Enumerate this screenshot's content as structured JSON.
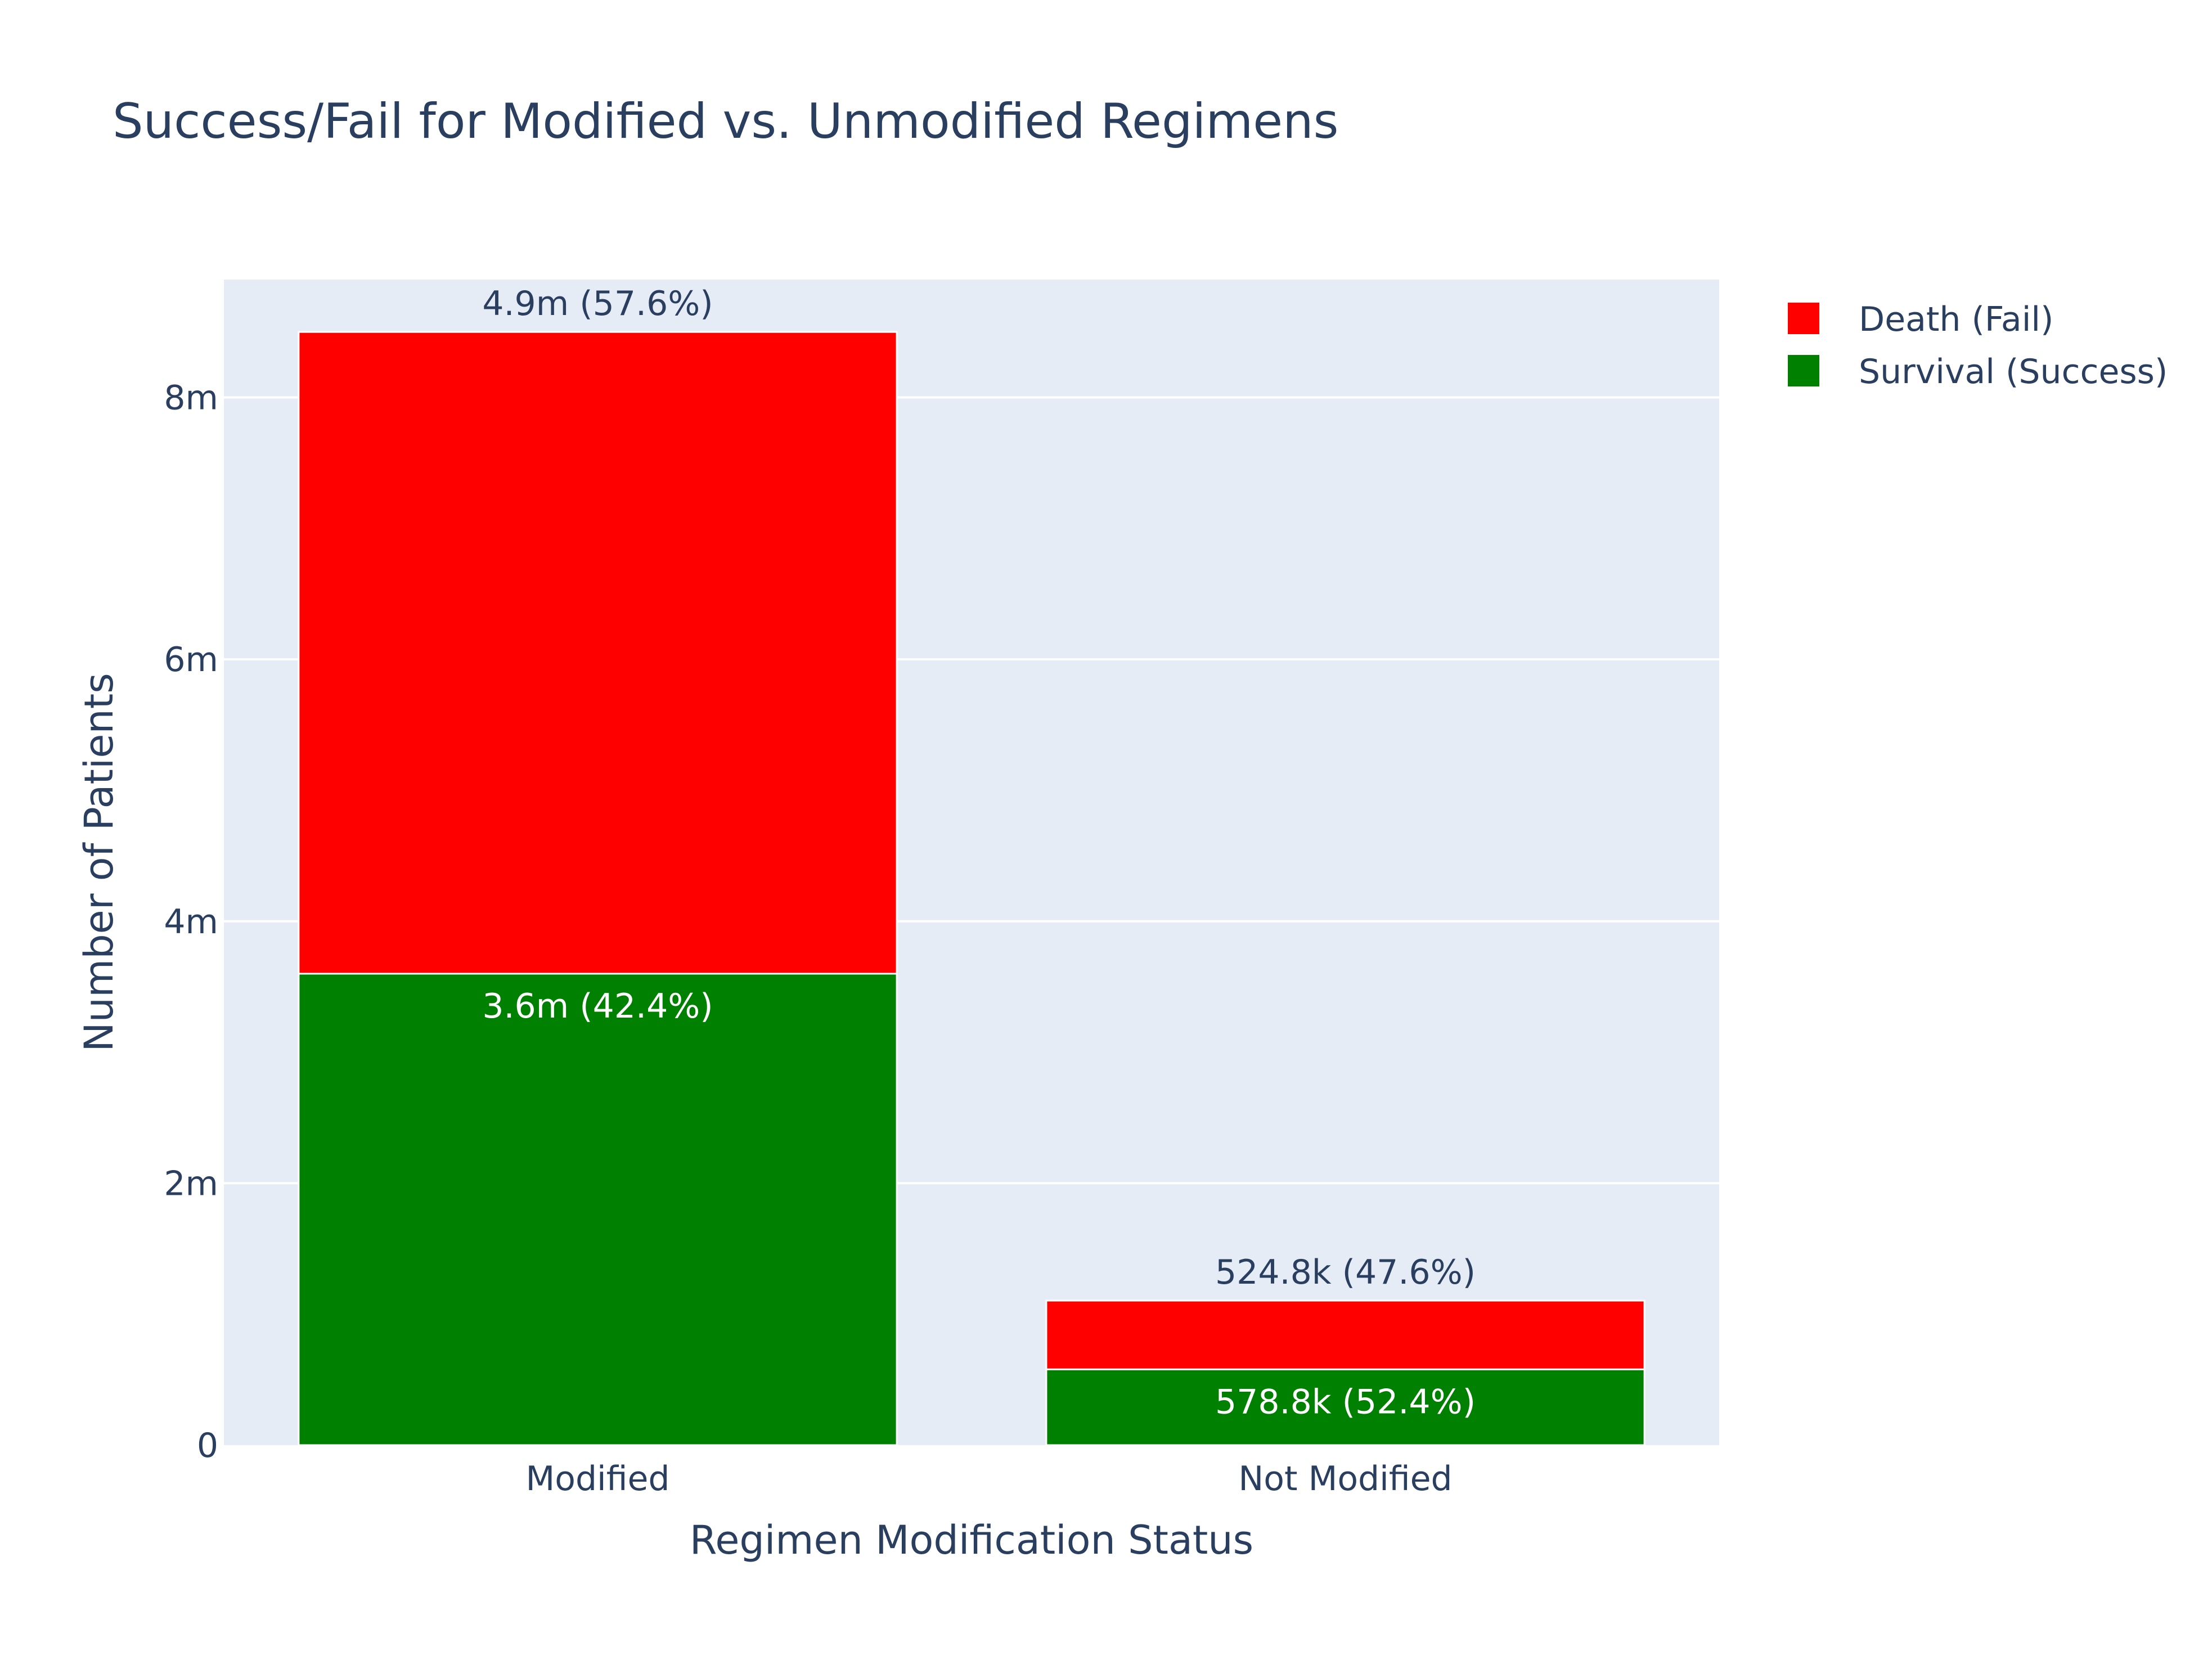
{
  "chart_data": {
    "type": "bar",
    "barmode": "stack",
    "title": "Success/Fail for Modified vs. Unmodified Regimens",
    "xlabel": "Regimen Modification Status",
    "ylabel": "Number of Patients",
    "categories": [
      "Modified",
      "Not Modified"
    ],
    "ylim": [
      0,
      8900000
    ],
    "yticks": [
      {
        "value": 0,
        "label": "0"
      },
      {
        "value": 2000000,
        "label": "2m"
      },
      {
        "value": 4000000,
        "label": "4m"
      },
      {
        "value": 6000000,
        "label": "6m"
      },
      {
        "value": 8000000,
        "label": "8m"
      }
    ],
    "grid": true,
    "legend_position": "top-right",
    "series": [
      {
        "name": "Survival (Success)",
        "color": "#008000",
        "values": [
          3600000,
          578800
        ],
        "labels": [
          "3.6m (42.4%)",
          "578.8k (52.4%)"
        ],
        "label_position": "inside"
      },
      {
        "name": "Death (Fail)",
        "color": "#ff0000",
        "values": [
          4900000,
          524800
        ],
        "labels": [
          "4.9m (57.6%)",
          "524.8k (47.6%)"
        ],
        "label_position": "outside"
      }
    ]
  }
}
